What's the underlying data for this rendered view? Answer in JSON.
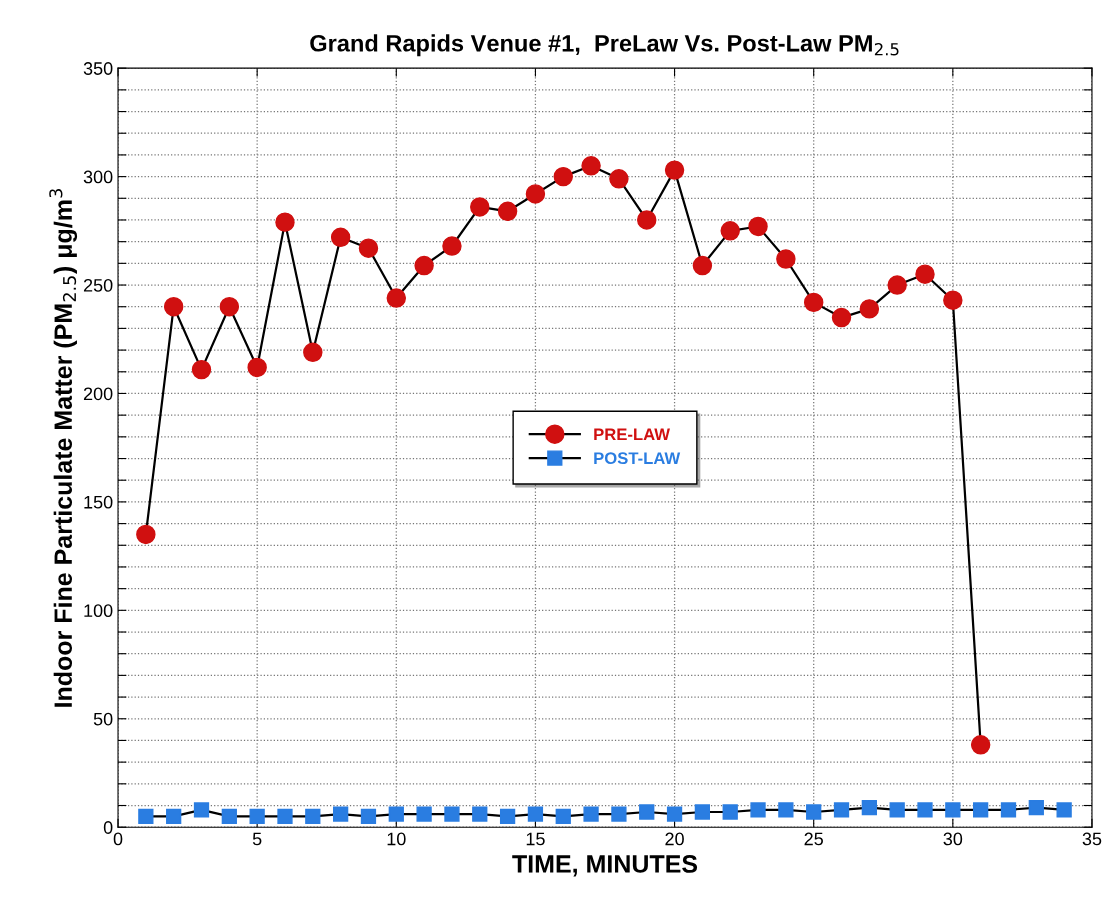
{
  "chart_data": {
    "type": "line",
    "title": "Grand Rapids Venue #1,  PreLaw Vs. Post-Law PM$_{2.5}$",
    "xlabel": "TIME, MINUTES",
    "ylabel": "Indoor Fine Particulate Matter (PM$_{2.5}$) μg/m$^{3}$",
    "xlim": [
      0,
      35
    ],
    "xticks": [
      0,
      5,
      10,
      15,
      20,
      25,
      30,
      35
    ],
    "ylim": [
      0,
      350
    ],
    "yticks": [
      0,
      {
        "value": 10,
        "label": null
      },
      {
        "value": 20,
        "label": null
      },
      {
        "value": 30,
        "label": null
      },
      {
        "value": 40,
        "label": null
      },
      50,
      {
        "value": 60,
        "label": null
      },
      {
        "value": 70,
        "label": null
      },
      {
        "value": 80,
        "label": null
      },
      {
        "value": 90,
        "label": null
      },
      100,
      {
        "value": 110,
        "label": null
      },
      {
        "value": 120,
        "label": null
      },
      {
        "value": 130,
        "label": null
      },
      {
        "value": 140,
        "label": null
      },
      150,
      {
        "value": 160,
        "label": null
      },
      {
        "value": 170,
        "label": null
      },
      {
        "value": 180,
        "label": null
      },
      {
        "value": 190,
        "label": null
      },
      200,
      {
        "value": 210,
        "label": null
      },
      {
        "value": 220,
        "label": null
      },
      {
        "value": 230,
        "label": null
      },
      {
        "value": 240,
        "label": null
      },
      250,
      {
        "value": 260,
        "label": null
      },
      {
        "value": 270,
        "label": null
      },
      {
        "value": 280,
        "label": null
      },
      {
        "value": 290,
        "label": null
      },
      300,
      {
        "value": 310,
        "label": null
      },
      {
        "value": 320,
        "label": null
      },
      {
        "value": 330,
        "label": null
      },
      {
        "value": 340,
        "label": null
      },
      350
    ],
    "grid": true,
    "legend": "center",
    "line_style": "solid",
    "series": [
      {
        "name": "PRE-LAW",
        "color": "#d01010",
        "marker": "circle",
        "x": [
          1,
          2,
          3,
          4,
          5,
          6,
          7,
          8,
          9,
          10,
          11,
          12,
          13,
          14,
          15,
          16,
          17,
          18,
          19,
          20,
          21,
          22,
          23,
          24,
          25,
          26,
          27,
          28,
          29,
          30,
          31
        ],
        "values": [
          135,
          240,
          211,
          240,
          212,
          279,
          219,
          272,
          267,
          244,
          259,
          268,
          286,
          284,
          292,
          300,
          305,
          299,
          280,
          303,
          259,
          275,
          277,
          262,
          242,
          235,
          239,
          250,
          255,
          243,
          38
        ]
      },
      {
        "name": "POST-LAW",
        "color": "#2a7de1",
        "marker": "square",
        "x": [
          1,
          2,
          3,
          4,
          5,
          6,
          7,
          8,
          9,
          10,
          11,
          12,
          13,
          14,
          15,
          16,
          17,
          18,
          19,
          20,
          21,
          22,
          23,
          24,
          25,
          26,
          27,
          28,
          29,
          30,
          31,
          32,
          33,
          34
        ],
        "values": [
          5,
          5,
          8,
          5,
          5,
          5,
          5,
          6,
          5,
          6,
          6,
          6,
          6,
          5,
          6,
          5,
          6,
          6,
          7,
          6,
          7,
          7,
          8,
          8,
          7,
          8,
          9,
          8,
          8,
          8,
          8,
          8,
          9,
          8
        ]
      }
    ]
  }
}
